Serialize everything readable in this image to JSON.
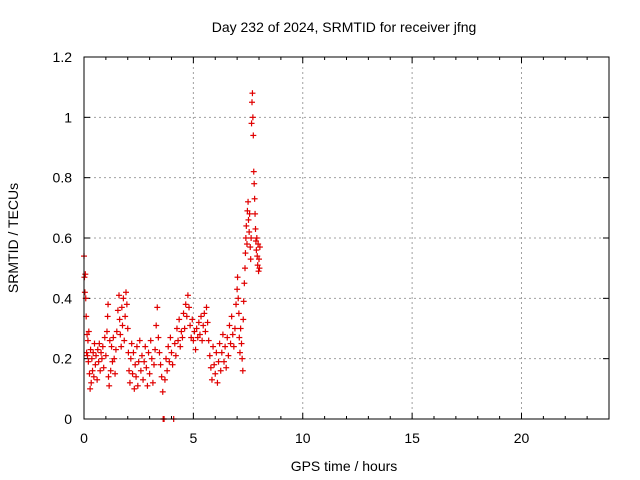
{
  "chart_data": {
    "type": "scatter",
    "title": "Day 232 of 2024, SRMTID for receiver jfng",
    "xlabel": "GPS time / hours",
    "ylabel": "SRMTID / TECUs",
    "xlim": [
      0,
      24
    ],
    "ylim": [
      0,
      1.2
    ],
    "xticks": [
      "0",
      "5",
      "10",
      "15",
      "20"
    ],
    "yticks": [
      "0",
      "0.2",
      "0.4",
      "0.6",
      "0.8",
      "1",
      "1.2"
    ],
    "grid": true,
    "marker": "plus",
    "color": "#e00000",
    "series": [
      {
        "name": "SRMTID",
        "points": [
          [
            0.0,
            0.54
          ],
          [
            0.02,
            0.47
          ],
          [
            0.04,
            0.42
          ],
          [
            0.06,
            0.48
          ],
          [
            0.08,
            0.4
          ],
          [
            0.1,
            0.34
          ],
          [
            0.12,
            0.22
          ],
          [
            0.14,
            0.28
          ],
          [
            0.16,
            0.21
          ],
          [
            0.18,
            0.26
          ],
          [
            0.2,
            0.19
          ],
          [
            0.22,
            0.29
          ],
          [
            0.25,
            0.15
          ],
          [
            0.28,
            0.1
          ],
          [
            0.3,
            0.23
          ],
          [
            0.33,
            0.12
          ],
          [
            0.36,
            0.2
          ],
          [
            0.39,
            0.16
          ],
          [
            0.42,
            0.22
          ],
          [
            0.45,
            0.14
          ],
          [
            0.48,
            0.25
          ],
          [
            0.52,
            0.18
          ],
          [
            0.55,
            0.21
          ],
          [
            0.6,
            0.13
          ],
          [
            0.63,
            0.23
          ],
          [
            0.67,
            0.19
          ],
          [
            0.7,
            0.25
          ],
          [
            0.74,
            0.16
          ],
          [
            0.78,
            0.22
          ],
          [
            0.82,
            0.2
          ],
          [
            0.86,
            0.24
          ],
          [
            0.9,
            0.17
          ],
          [
            0.95,
            0.27
          ],
          [
            1.0,
            0.21
          ],
          [
            1.05,
            0.29
          ],
          [
            1.08,
            0.34
          ],
          [
            1.1,
            0.38
          ],
          [
            1.12,
            0.14
          ],
          [
            1.15,
            0.11
          ],
          [
            1.18,
            0.26
          ],
          [
            1.22,
            0.16
          ],
          [
            1.26,
            0.24
          ],
          [
            1.3,
            0.19
          ],
          [
            1.34,
            0.27
          ],
          [
            1.38,
            0.2
          ],
          [
            1.42,
            0.15
          ],
          [
            1.46,
            0.23
          ],
          [
            1.5,
            0.29
          ],
          [
            1.55,
            0.36
          ],
          [
            1.6,
            0.41
          ],
          [
            1.63,
            0.33
          ],
          [
            1.66,
            0.28
          ],
          [
            1.7,
            0.24
          ],
          [
            1.73,
            0.37
          ],
          [
            1.76,
            0.31
          ],
          [
            1.8,
            0.4
          ],
          [
            1.84,
            0.26
          ],
          [
            1.88,
            0.34
          ],
          [
            1.92,
            0.42
          ],
          [
            1.96,
            0.38
          ],
          [
            2.0,
            0.3
          ],
          [
            2.03,
            0.22
          ],
          [
            2.06,
            0.16
          ],
          [
            2.1,
            0.12
          ],
          [
            2.14,
            0.2
          ],
          [
            2.18,
            0.25
          ],
          [
            2.22,
            0.15
          ],
          [
            2.26,
            0.22
          ],
          [
            2.3,
            0.1
          ],
          [
            2.34,
            0.18
          ],
          [
            2.38,
            0.14
          ],
          [
            2.42,
            0.24
          ],
          [
            2.46,
            0.11
          ],
          [
            2.5,
            0.19
          ],
          [
            2.55,
            0.26
          ],
          [
            2.6,
            0.16
          ],
          [
            2.65,
            0.21
          ],
          [
            2.7,
            0.13
          ],
          [
            2.75,
            0.19
          ],
          [
            2.8,
            0.24
          ],
          [
            2.85,
            0.17
          ],
          [
            2.9,
            0.11
          ],
          [
            2.95,
            0.22
          ],
          [
            3.0,
            0.15
          ],
          [
            3.05,
            0.26
          ],
          [
            3.1,
            0.2
          ],
          [
            3.15,
            0.12
          ],
          [
            3.2,
            0.18
          ],
          [
            3.25,
            0.23
          ],
          [
            3.3,
            0.31
          ],
          [
            3.35,
            0.37
          ],
          [
            3.4,
            0.27
          ],
          [
            3.45,
            0.22
          ],
          [
            3.5,
            0.18
          ],
          [
            3.55,
            0.14
          ],
          [
            3.6,
            0.09
          ],
          [
            3.62,
            0.0
          ],
          [
            3.66,
            0.0
          ],
          [
            3.7,
            0.13
          ],
          [
            3.75,
            0.2
          ],
          [
            3.8,
            0.16
          ],
          [
            3.85,
            0.24
          ],
          [
            3.9,
            0.19
          ],
          [
            3.95,
            0.27
          ],
          [
            4.0,
            0.22
          ],
          [
            4.05,
            0.18
          ],
          [
            4.1,
            0.0
          ],
          [
            4.15,
            0.25
          ],
          [
            4.2,
            0.21
          ],
          [
            4.25,
            0.3
          ],
          [
            4.3,
            0.26
          ],
          [
            4.35,
            0.33
          ],
          [
            4.4,
            0.24
          ],
          [
            4.45,
            0.29
          ],
          [
            4.5,
            0.27
          ],
          [
            4.55,
            0.35
          ],
          [
            4.6,
            0.3
          ],
          [
            4.65,
            0.38
          ],
          [
            4.7,
            0.34
          ],
          [
            4.75,
            0.41
          ],
          [
            4.8,
            0.37
          ],
          [
            4.85,
            0.31
          ],
          [
            4.9,
            0.27
          ],
          [
            4.95,
            0.33
          ],
          [
            5.0,
            0.26
          ],
          [
            5.05,
            0.29
          ],
          [
            5.1,
            0.23
          ],
          [
            5.15,
            0.3
          ],
          [
            5.2,
            0.27
          ],
          [
            5.25,
            0.32
          ],
          [
            5.3,
            0.28
          ],
          [
            5.35,
            0.34
          ],
          [
            5.4,
            0.26
          ],
          [
            5.45,
            0.31
          ],
          [
            5.5,
            0.35
          ],
          [
            5.55,
            0.29
          ],
          [
            5.6,
            0.37
          ],
          [
            5.65,
            0.32
          ],
          [
            5.7,
            0.26
          ],
          [
            5.75,
            0.21
          ],
          [
            5.8,
            0.17
          ],
          [
            5.85,
            0.13
          ],
          [
            5.9,
            0.24
          ],
          [
            5.95,
            0.18
          ],
          [
            6.0,
            0.15
          ],
          [
            6.05,
            0.22
          ],
          [
            6.1,
            0.12
          ],
          [
            6.15,
            0.19
          ],
          [
            6.2,
            0.25
          ],
          [
            6.25,
            0.16
          ],
          [
            6.3,
            0.22
          ],
          [
            6.35,
            0.28
          ],
          [
            6.4,
            0.19
          ],
          [
            6.45,
            0.24
          ],
          [
            6.5,
            0.17
          ],
          [
            6.55,
            0.27
          ],
          [
            6.6,
            0.21
          ],
          [
            6.65,
            0.31
          ],
          [
            6.7,
            0.25
          ],
          [
            6.75,
            0.34
          ],
          [
            6.8,
            0.28
          ],
          [
            6.85,
            0.24
          ],
          [
            6.9,
            0.3
          ],
          [
            6.95,
            0.38
          ],
          [
            7.0,
            0.43
          ],
          [
            7.02,
            0.47
          ],
          [
            7.05,
            0.4
          ],
          [
            7.08,
            0.35
          ],
          [
            7.1,
            0.27
          ],
          [
            7.13,
            0.22
          ],
          [
            7.16,
            0.3
          ],
          [
            7.2,
            0.25
          ],
          [
            7.23,
            0.2
          ],
          [
            7.26,
            0.16
          ],
          [
            7.28,
            0.33
          ],
          [
            7.3,
            0.39
          ],
          [
            7.33,
            0.45
          ],
          [
            7.36,
            0.5
          ],
          [
            7.38,
            0.55
          ],
          [
            7.4,
            0.6
          ],
          [
            7.42,
            0.64
          ],
          [
            7.45,
            0.58
          ],
          [
            7.47,
            0.69
          ],
          [
            7.5,
            0.72
          ],
          [
            7.52,
            0.66
          ],
          [
            7.55,
            0.62
          ],
          [
            7.57,
            0.68
          ],
          [
            7.6,
            0.57
          ],
          [
            7.62,
            0.53
          ],
          [
            7.64,
            0.6
          ],
          [
            7.66,
            0.98
          ],
          [
            7.68,
            1.05
          ],
          [
            7.7,
            1.08
          ],
          [
            7.72,
            1.0
          ],
          [
            7.74,
            0.94
          ],
          [
            7.76,
            0.82
          ],
          [
            7.78,
            0.78
          ],
          [
            7.8,
            0.73
          ],
          [
            7.82,
            0.68
          ],
          [
            7.84,
            0.63
          ],
          [
            7.86,
            0.59
          ],
          [
            7.88,
            0.56
          ],
          [
            7.9,
            0.6
          ],
          [
            7.92,
            0.54
          ],
          [
            7.94,
            0.51
          ],
          [
            7.96,
            0.58
          ],
          [
            7.98,
            0.49
          ],
          [
            8.0,
            0.53
          ],
          [
            8.02,
            0.5
          ],
          [
            8.04,
            0.57
          ]
        ]
      }
    ]
  }
}
